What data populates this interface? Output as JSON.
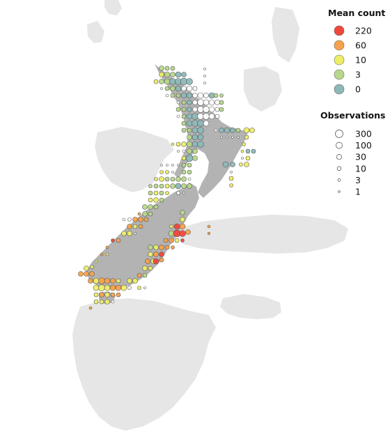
{
  "map": {
    "region": "New Zealand",
    "land_color": "#e6e6e6",
    "focus_land_color": "#b3b3b3"
  },
  "legend_count": {
    "title": "Mean count",
    "entries": [
      {
        "label": "220",
        "color": "#f0473c"
      },
      {
        "label": "60",
        "color": "#f7a24a"
      },
      {
        "label": "10",
        "color": "#eeee66"
      },
      {
        "label": "3",
        "color": "#b7d88a"
      },
      {
        "label": "0",
        "color": "#8db8b8"
      }
    ]
  },
  "legend_obs": {
    "title": "Observations",
    "entries": [
      {
        "label": "300",
        "r": 5.5
      },
      {
        "label": "100",
        "r": 4.5
      },
      {
        "label": "30",
        "r": 3.6
      },
      {
        "label": "10",
        "r": 2.8
      },
      {
        "label": "3",
        "r": 2.0
      },
      {
        "label": "1",
        "r": 1.3
      }
    ]
  }
}
